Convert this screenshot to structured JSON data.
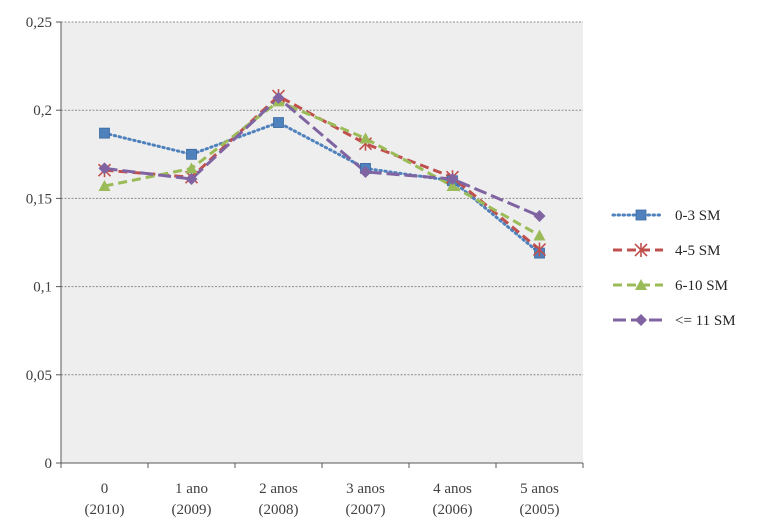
{
  "chart_data": {
    "type": "line",
    "title": "",
    "xlabel": "",
    "ylabel": "",
    "ylim": [
      0,
      0.25
    ],
    "yticks": [
      "0",
      "0,05",
      "0,1",
      "0,15",
      "0,2",
      "0,25"
    ],
    "ytick_values": [
      0,
      0.05,
      0.1,
      0.15,
      0.2,
      0.25
    ],
    "categories": [
      {
        "line1": "0",
        "line2": "(2010)"
      },
      {
        "line1": "1 ano",
        "line2": "(2009)"
      },
      {
        "line1": "2 anos",
        "line2": "(2008)"
      },
      {
        "line1": "3 anos",
        "line2": "(2007)"
      },
      {
        "line1": "4 anos",
        "line2": "(2006)"
      },
      {
        "line1": "5 anos",
        "line2": "(2005)"
      }
    ],
    "grid": true,
    "plot_background": "#eeeeee",
    "legend_position": "right",
    "series": [
      {
        "name": "0-3 SM",
        "color": "#4f81bd",
        "dash": "dot",
        "marker": "square",
        "values": [
          0.187,
          0.175,
          0.193,
          0.167,
          0.16,
          0.119
        ]
      },
      {
        "name": "4-5 SM",
        "color": "#c0504d",
        "dash": "dash",
        "marker": "star",
        "values": [
          0.166,
          0.162,
          0.208,
          0.181,
          0.162,
          0.121
        ]
      },
      {
        "name": "6-10 SM",
        "color": "#9bbb59",
        "dash": "dash",
        "marker": "triangle",
        "values": [
          0.157,
          0.167,
          0.205,
          0.184,
          0.157,
          0.129
        ]
      },
      {
        "name": "<= 11 SM",
        "color": "#8064a2",
        "dash": "longdash",
        "marker": "diamond",
        "values": [
          0.167,
          0.161,
          0.207,
          0.165,
          0.161,
          0.14
        ]
      }
    ]
  }
}
